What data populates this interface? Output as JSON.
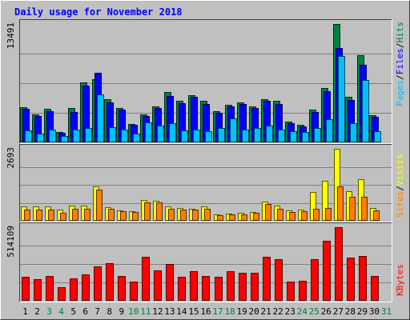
{
  "title": "Daily usage for November 2018",
  "colors": {
    "background": "#c0c0c0",
    "panel": "#c0c0c0",
    "grid": "#808080",
    "title": "#0000ff",
    "hits": "#008040",
    "files": "#0000ff",
    "pages": "#00c0ff",
    "visits": "#ffff00",
    "sites": "#ff8000",
    "kbytes": "#ff0000",
    "day_normal": "#000000",
    "day_weekend": "#008040"
  },
  "legends": {
    "top": [
      "Pages",
      "Files",
      "Hits"
    ],
    "top_sep": "/",
    "middle": [
      "Sites",
      "Visits"
    ],
    "middle_sep": "/",
    "bottom": "KBytes"
  },
  "chart_data": [
    {
      "type": "bar",
      "title": "Daily usage for November 2018",
      "y_max_label": "13491",
      "ylim": [
        0,
        13491
      ],
      "categories": [
        "1",
        "2",
        "3",
        "4",
        "5",
        "6",
        "7",
        "8",
        "9",
        "10",
        "11",
        "12",
        "13",
        "14",
        "15",
        "16",
        "17",
        "18",
        "19",
        "20",
        "21",
        "22",
        "23",
        "24",
        "25",
        "26",
        "27",
        "28",
        "29",
        "30",
        "31"
      ],
      "weekend_days": [
        "3",
        "4",
        "10",
        "11",
        "17",
        "18",
        "24",
        "25",
        "31"
      ],
      "series": [
        {
          "name": "Hits",
          "values": [
            4000,
            3200,
            3800,
            1200,
            3900,
            6800,
            7200,
            4900,
            3900,
            2100,
            3200,
            4100,
            5700,
            4700,
            5400,
            4700,
            3600,
            4300,
            4600,
            4100,
            4900,
            4700,
            2400,
            2000,
            3700,
            6200,
            13491,
            5200,
            9900,
            3100,
            0
          ]
        },
        {
          "name": "Files",
          "values": [
            3800,
            3000,
            3600,
            1100,
            3500,
            6500,
            7900,
            4600,
            3700,
            2000,
            3000,
            3900,
            5300,
            4500,
            5200,
            4400,
            3400,
            4100,
            4400,
            3900,
            4700,
            4400,
            2200,
            1800,
            3500,
            5800,
            10800,
            4800,
            8800,
            2900,
            0
          ]
        },
        {
          "name": "Pages",
          "values": [
            1400,
            1000,
            1500,
            700,
            1500,
            1600,
            5500,
            1700,
            1500,
            1000,
            2300,
            1900,
            2200,
            1400,
            1500,
            1300,
            1600,
            2700,
            1500,
            1600,
            1900,
            1500,
            1300,
            1200,
            1600,
            2600,
            9800,
            2200,
            7100,
            1300,
            0
          ]
        }
      ]
    },
    {
      "type": "bar",
      "y_max_label": "2693",
      "ylim": [
        0,
        2693
      ],
      "categories": [
        "1",
        "2",
        "3",
        "4",
        "5",
        "6",
        "7",
        "8",
        "9",
        "10",
        "11",
        "12",
        "13",
        "14",
        "15",
        "16",
        "17",
        "18",
        "19",
        "20",
        "21",
        "22",
        "23",
        "24",
        "25",
        "26",
        "27",
        "28",
        "29",
        "30",
        "31"
      ],
      "series": [
        {
          "name": "Visits",
          "values": [
            540,
            540,
            540,
            410,
            560,
            580,
            1280,
            500,
            380,
            360,
            780,
            760,
            530,
            470,
            440,
            540,
            240,
            280,
            300,
            340,
            710,
            580,
            380,
            420,
            1070,
            1490,
            2693,
            1110,
            1560,
            490,
            0
          ]
        },
        {
          "name": "Sites",
          "values": [
            420,
            420,
            410,
            310,
            450,
            460,
            1160,
            460,
            360,
            340,
            690,
            680,
            450,
            420,
            410,
            440,
            220,
            240,
            250,
            310,
            640,
            460,
            330,
            360,
            460,
            470,
            1300,
            890,
            910,
            400,
            0
          ]
        }
      ]
    },
    {
      "type": "bar",
      "y_max_label": "514109",
      "ylim": [
        0,
        514109
      ],
      "categories": [
        "1",
        "2",
        "3",
        "4",
        "5",
        "6",
        "7",
        "8",
        "9",
        "10",
        "11",
        "12",
        "13",
        "14",
        "15",
        "16",
        "17",
        "18",
        "19",
        "20",
        "21",
        "22",
        "23",
        "24",
        "25",
        "26",
        "27",
        "28",
        "29",
        "30",
        "31"
      ],
      "series": [
        {
          "name": "KBytes",
          "values": [
            165000,
            150000,
            175000,
            95000,
            155000,
            185000,
            240000,
            265000,
            175000,
            135000,
            310000,
            215000,
            255000,
            165000,
            205000,
            175000,
            170000,
            205000,
            195000,
            195000,
            310000,
            290000,
            135000,
            140000,
            290000,
            420000,
            514109,
            300000,
            315000,
            175000,
            0
          ]
        }
      ]
    }
  ]
}
